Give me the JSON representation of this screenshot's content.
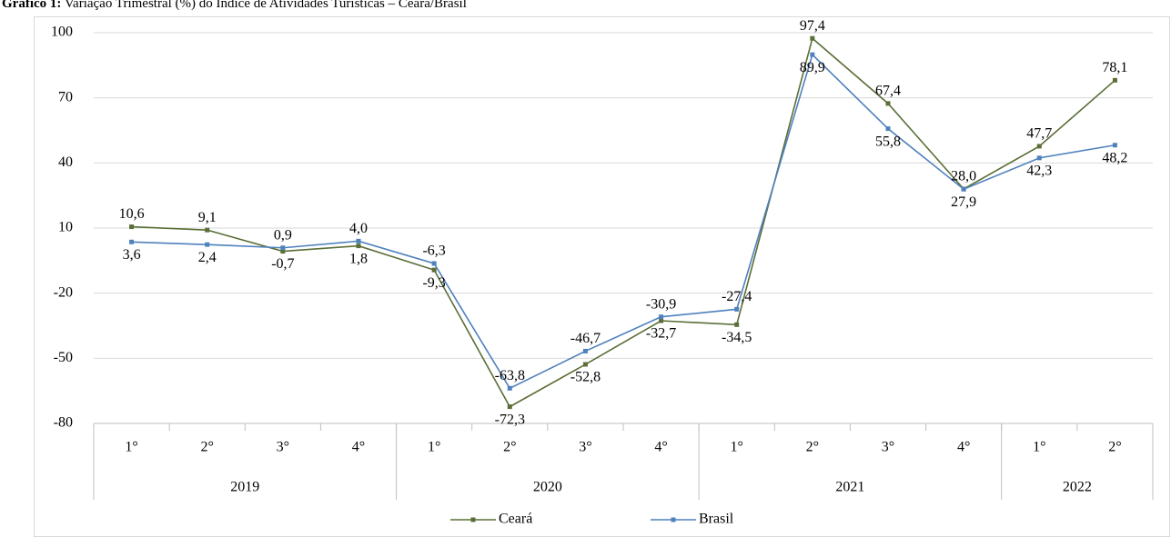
{
  "chart_data": {
    "type": "line",
    "title_label": "Gráfico 1:",
    "title": "Variação Trimestral (%) do Índice de Atividades Turísticas – Ceará/Brasil",
    "categories": [
      {
        "quarter": "1°",
        "year": "2019"
      },
      {
        "quarter": "2°",
        "year": "2019"
      },
      {
        "quarter": "3°",
        "year": "2019"
      },
      {
        "quarter": "4°",
        "year": "2019"
      },
      {
        "quarter": "1°",
        "year": "2020"
      },
      {
        "quarter": "2°",
        "year": "2020"
      },
      {
        "quarter": "3°",
        "year": "2020"
      },
      {
        "quarter": "4°",
        "year": "2020"
      },
      {
        "quarter": "1°",
        "year": "2021"
      },
      {
        "quarter": "2°",
        "year": "2021"
      },
      {
        "quarter": "3°",
        "year": "2021"
      },
      {
        "quarter": "4°",
        "year": "2021"
      },
      {
        "quarter": "1°",
        "year": "2022"
      },
      {
        "quarter": "2°",
        "year": "2022"
      }
    ],
    "series": [
      {
        "name": "Ceará",
        "color": "#5a6e36",
        "values": [
          10.6,
          9.1,
          -0.7,
          1.8,
          -9.3,
          -72.3,
          -52.8,
          -32.7,
          -34.5,
          97.4,
          67.4,
          28.0,
          47.7,
          78.1
        ],
        "value_labels": [
          "10,6",
          "9,1",
          "-0,7",
          "1,8",
          "-9,3",
          "-72,3",
          "-52,8",
          "-32,7",
          "-34,5",
          "97,4",
          "67,4",
          "28,0",
          "47,7",
          "78,1"
        ]
      },
      {
        "name": "Brasil",
        "color": "#4f81bd",
        "values": [
          3.6,
          2.4,
          0.9,
          4.0,
          -6.3,
          -63.8,
          -46.7,
          -30.9,
          -27.4,
          89.9,
          55.8,
          27.9,
          42.3,
          48.2
        ],
        "value_labels": [
          "3,6",
          "2,4",
          "0,9",
          "4,0",
          "-6,3",
          "-63,8",
          "-46,7",
          "-30,9",
          "-27,4",
          "89,9",
          "55,8",
          "27,9",
          "42,3",
          "48,2"
        ]
      }
    ],
    "ylim": [
      -80,
      100
    ],
    "yticks": [
      -80,
      -50,
      -20,
      10,
      40,
      70,
      100
    ],
    "grid": true,
    "legend": "bottom"
  }
}
